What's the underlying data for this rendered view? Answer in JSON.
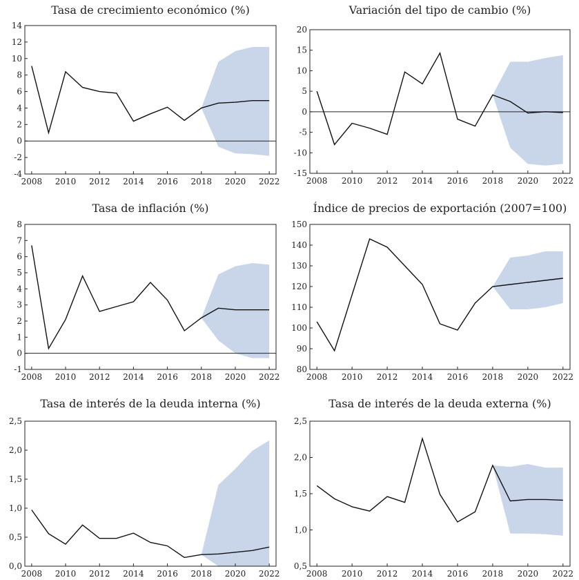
{
  "chart_data": [
    {
      "type": "line",
      "title": "Tasa de crecimiento económico (%)",
      "x": [
        2008,
        2009,
        2010,
        2011,
        2012,
        2013,
        2014,
        2015,
        2016,
        2017,
        2018,
        2019,
        2020,
        2021,
        2022
      ],
      "series": [
        {
          "values": [
            9.1,
            1.0,
            8.4,
            6.5,
            6.0,
            5.8,
            2.4,
            3.3,
            4.1,
            2.5,
            4.0,
            4.6,
            4.7,
            4.9,
            4.9
          ]
        }
      ],
      "band": {
        "x": [
          2018,
          2019,
          2020,
          2021,
          2022
        ],
        "lower": [
          4.0,
          -0.7,
          -1.5,
          -1.6,
          -1.8
        ],
        "upper": [
          4.0,
          9.6,
          10.9,
          11.4,
          11.4
        ]
      },
      "ylim": [
        -4,
        14
      ],
      "yticks": [
        "14",
        "12",
        "10",
        "8",
        "6",
        "4",
        "2",
        "0",
        "-2",
        "-4"
      ],
      "xticks": [
        "2008",
        "2010",
        "2012",
        "2014",
        "2016",
        "2018",
        "2020",
        "2022"
      ],
      "xlim": [
        2007.6,
        2022.4
      ],
      "zero_line": true
    },
    {
      "type": "line",
      "title": "Variación del tipo de cambio (%)",
      "x": [
        2008,
        2009,
        2010,
        2011,
        2012,
        2013,
        2014,
        2015,
        2016,
        2017,
        2018,
        2019,
        2020,
        2021,
        2022
      ],
      "series": [
        {
          "values": [
            5.0,
            -8.0,
            -2.8,
            -4.0,
            -5.5,
            9.7,
            6.8,
            14.3,
            -1.8,
            -3.5,
            4.1,
            2.5,
            -0.3,
            0.0,
            -0.2
          ]
        }
      ],
      "band": {
        "x": [
          2018,
          2019,
          2020,
          2021,
          2022
        ],
        "lower": [
          4.1,
          -8.8,
          -12.7,
          -13.1,
          -12.7
        ],
        "upper": [
          4.1,
          12.2,
          12.2,
          13.1,
          13.8
        ]
      },
      "ylim": [
        -15,
        20
      ],
      "yticks": [
        "20",
        "15",
        "10",
        "5",
        "0",
        "-5",
        "-10",
        "-15"
      ],
      "xticks": [
        "2008",
        "2010",
        "2012",
        "2014",
        "2016",
        "2018",
        "2020",
        "2022"
      ],
      "xlim": [
        2007.6,
        2022.4
      ],
      "zero_line": true
    },
    {
      "type": "line",
      "title": "Tasa de inflación (%)",
      "x": [
        2008,
        2009,
        2010,
        2011,
        2012,
        2013,
        2014,
        2015,
        2016,
        2017,
        2018,
        2019,
        2020,
        2021,
        2022
      ],
      "series": [
        {
          "values": [
            6.7,
            0.3,
            2.1,
            4.8,
            2.6,
            2.9,
            3.2,
            4.4,
            3.3,
            1.4,
            2.2,
            2.8,
            2.7,
            2.7,
            2.7
          ]
        }
      ],
      "band": {
        "x": [
          2018,
          2019,
          2020,
          2021,
          2022
        ],
        "lower": [
          2.2,
          0.8,
          0.0,
          -0.3,
          -0.3
        ],
        "upper": [
          2.2,
          4.9,
          5.4,
          5.6,
          5.5
        ]
      },
      "ylim": [
        -1,
        8
      ],
      "yticks": [
        "8",
        "7",
        "6",
        "5",
        "4",
        "3",
        "2",
        "1",
        "0",
        "-1"
      ],
      "xticks": [
        "2008",
        "2010",
        "2012",
        "2014",
        "2016",
        "2018",
        "2020",
        "2022"
      ],
      "xlim": [
        2007.6,
        2022.4
      ],
      "zero_line": true
    },
    {
      "type": "line",
      "title": "Índice de precios de exportación (2007=100)",
      "x": [
        2008,
        2009,
        2010,
        2011,
        2012,
        2013,
        2014,
        2015,
        2016,
        2017,
        2018,
        2019,
        2020,
        2021,
        2022
      ],
      "series": [
        {
          "values": [
            103,
            89,
            116,
            143,
            139,
            130,
            121,
            102,
            99,
            112,
            120,
            121,
            122,
            123,
            124
          ]
        }
      ],
      "band": {
        "x": [
          2018,
          2019,
          2020,
          2021,
          2022
        ],
        "lower": [
          120,
          109,
          109,
          110,
          112
        ],
        "upper": [
          120,
          134,
          135,
          137,
          137
        ]
      },
      "ylim": [
        80,
        150
      ],
      "yticks": [
        "150",
        "140",
        "130",
        "120",
        "110",
        "100",
        "90",
        "80"
      ],
      "xticks": [
        "2008",
        "2010",
        "2012",
        "2014",
        "2016",
        "2018",
        "2020",
        "2022"
      ],
      "xlim": [
        2007.6,
        2022.4
      ],
      "zero_line": false
    },
    {
      "type": "line",
      "title": "Tasa de interés de la deuda interna (%)",
      "x": [
        2008,
        2009,
        2010,
        2011,
        2012,
        2013,
        2014,
        2015,
        2016,
        2017,
        2018,
        2019,
        2020,
        2021,
        2022
      ],
      "series": [
        {
          "values": [
            0.97,
            0.56,
            0.38,
            0.71,
            0.48,
            0.48,
            0.57,
            0.41,
            0.35,
            0.15,
            0.2,
            0.21,
            0.24,
            0.27,
            0.33
          ]
        }
      ],
      "band": {
        "x": [
          2018,
          2019,
          2020,
          2021,
          2022
        ],
        "lower": [
          0.2,
          0.0,
          0.0,
          0.0,
          0.0
        ],
        "upper": [
          0.2,
          1.4,
          1.68,
          1.99,
          2.17
        ]
      },
      "ylim": [
        0,
        2.5
      ],
      "yticks": [
        "2,5",
        "2,0",
        "1,5",
        "1,0",
        "0,5",
        "0,0"
      ],
      "xticks": [
        "2008",
        "2010",
        "2012",
        "2014",
        "2016",
        "2018",
        "2020",
        "2022"
      ],
      "xlim": [
        2007.6,
        2022.4
      ],
      "zero_line": false
    },
    {
      "type": "line",
      "title": "Tasa de interés de la deuda externa (%)",
      "x": [
        2008,
        2009,
        2010,
        2011,
        2012,
        2013,
        2014,
        2015,
        2016,
        2017,
        2018,
        2019,
        2020,
        2021,
        2022
      ],
      "series": [
        {
          "values": [
            1.61,
            1.43,
            1.32,
            1.26,
            1.46,
            1.38,
            2.26,
            1.49,
            1.11,
            1.25,
            1.89,
            1.4,
            1.42,
            1.42,
            1.41
          ]
        }
      ],
      "band": {
        "x": [
          2018,
          2019,
          2020,
          2021,
          2022
        ],
        "lower": [
          1.89,
          0.95,
          0.95,
          0.94,
          0.92
        ],
        "upper": [
          1.89,
          1.87,
          1.91,
          1.86,
          1.86
        ]
      },
      "ylim": [
        0.5,
        2.5
      ],
      "yticks": [
        "2,5",
        "2,0",
        "1,5",
        "1,0",
        "0,5"
      ],
      "xticks": [
        "2008",
        "2010",
        "2012",
        "2014",
        "2016",
        "2018",
        "2020",
        "2022"
      ],
      "xlim": [
        2007.6,
        2022.4
      ],
      "zero_line": false
    }
  ]
}
